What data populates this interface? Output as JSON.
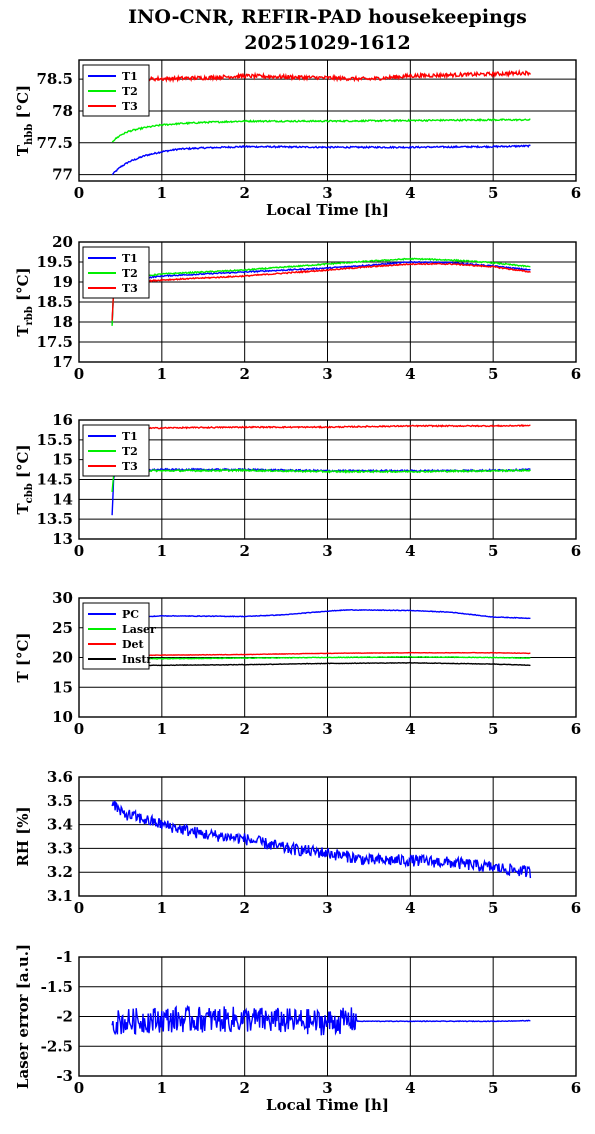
{
  "title": {
    "line1": "INO-CNR, REFIR-PAD housekeepings",
    "line2": "20251029-1612"
  },
  "colors": {
    "blue": "#0000ff",
    "green": "#00ee00",
    "red": "#ff0000",
    "black": "#000000"
  },
  "chart_data": [
    {
      "type": "line",
      "ylabel_main": "T",
      "ylabel_sub": "hbb",
      "ylabel_unit": " [°C]",
      "xlabel": "Local Time [h]",
      "xlim": [
        0,
        6
      ],
      "ylim": [
        76.9,
        78.8
      ],
      "xticks": [
        "0",
        "1",
        "2",
        "3",
        "4",
        "5",
        "6"
      ],
      "yticks": [
        {
          "v": 77,
          "t": "77"
        },
        {
          "v": 77.5,
          "t": "77.5"
        },
        {
          "v": 78,
          "t": "78"
        },
        {
          "v": 78.5,
          "t": "78.5"
        }
      ],
      "legend": {
        "position": "top-left",
        "entries": [
          "T1",
          "T2",
          "T3"
        ]
      },
      "series": [
        {
          "name": "T1",
          "color": "#0000ff",
          "noise": 0.012,
          "x": [
            0.4,
            0.5,
            0.6,
            0.8,
            1.0,
            1.2,
            1.5,
            2.0,
            3.0,
            4.0,
            5.0,
            5.45
          ],
          "y": [
            77.0,
            77.12,
            77.2,
            77.3,
            77.36,
            77.4,
            77.42,
            77.44,
            77.43,
            77.43,
            77.44,
            77.45
          ]
        },
        {
          "name": "T2",
          "color": "#00ee00",
          "noise": 0.012,
          "x": [
            0.4,
            0.5,
            0.6,
            0.8,
            1.0,
            1.2,
            1.5,
            2.0,
            3.0,
            4.0,
            5.0,
            5.45
          ],
          "y": [
            77.52,
            77.62,
            77.68,
            77.74,
            77.78,
            77.8,
            77.82,
            77.84,
            77.84,
            77.85,
            77.86,
            77.86
          ]
        },
        {
          "name": "T3",
          "color": "#ff0000",
          "noise": 0.03,
          "x": [
            0.4,
            0.8,
            1.5,
            2.0,
            3.0,
            3.5,
            4.0,
            5.0,
            5.45
          ],
          "y": [
            78.48,
            78.5,
            78.52,
            78.55,
            78.52,
            78.5,
            78.55,
            78.58,
            78.6
          ]
        }
      ]
    },
    {
      "type": "line",
      "ylabel_main": "T",
      "ylabel_sub": "rbb",
      "ylabel_unit": " [°C]",
      "xlabel": "",
      "xlim": [
        0,
        6
      ],
      "ylim": [
        17,
        20
      ],
      "xticks": [
        "0",
        "1",
        "2",
        "3",
        "4",
        "5",
        "6"
      ],
      "yticks": [
        {
          "v": 17,
          "t": "17"
        },
        {
          "v": 17.5,
          "t": "17.5"
        },
        {
          "v": 18,
          "t": "18"
        },
        {
          "v": 18.5,
          "t": "18.5"
        },
        {
          "v": 19,
          "t": "19"
        },
        {
          "v": 19.5,
          "t": "19.5"
        },
        {
          "v": 20,
          "t": "20"
        }
      ],
      "legend": {
        "position": "top-left",
        "entries": [
          "T1",
          "T2",
          "T3"
        ]
      },
      "series": [
        {
          "name": "T1",
          "color": "#0000ff",
          "noise": 0.015,
          "x": [
            0.4,
            0.42,
            0.5,
            0.8,
            1.0,
            2.0,
            3.0,
            3.5,
            4.0,
            4.5,
            5.0,
            5.45
          ],
          "y": [
            17.95,
            18.9,
            19.05,
            19.1,
            19.15,
            19.25,
            19.35,
            19.42,
            19.5,
            19.48,
            19.4,
            19.3
          ]
        },
        {
          "name": "T2",
          "color": "#00ee00",
          "noise": 0.015,
          "x": [
            0.4,
            0.42,
            0.5,
            0.8,
            1.0,
            2.0,
            3.0,
            3.5,
            4.0,
            4.5,
            5.0,
            5.45
          ],
          "y": [
            17.9,
            18.95,
            19.1,
            19.15,
            19.2,
            19.3,
            19.45,
            19.52,
            19.58,
            19.55,
            19.48,
            19.38
          ]
        },
        {
          "name": "T3",
          "color": "#ff0000",
          "noise": 0.015,
          "x": [
            0.4,
            0.42,
            0.5,
            0.8,
            1.0,
            2.0,
            3.0,
            3.5,
            4.0,
            4.5,
            5.0,
            5.45
          ],
          "y": [
            18.05,
            18.85,
            19.0,
            19.02,
            19.05,
            19.15,
            19.3,
            19.38,
            19.45,
            19.45,
            19.38,
            19.25
          ]
        }
      ]
    },
    {
      "type": "line",
      "ylabel_main": "T",
      "ylabel_sub": "cbb",
      "ylabel_unit": " [°C]",
      "xlabel": "",
      "xlim": [
        0,
        6
      ],
      "ylim": [
        13,
        16
      ],
      "xticks": [
        "0",
        "1",
        "2",
        "3",
        "4",
        "5",
        "6"
      ],
      "yticks": [
        {
          "v": 13,
          "t": "13"
        },
        {
          "v": 13.5,
          "t": "13.5"
        },
        {
          "v": 14,
          "t": "14"
        },
        {
          "v": 14.5,
          "t": "14.5"
        },
        {
          "v": 15,
          "t": "15"
        },
        {
          "v": 15.5,
          "t": "15.5"
        },
        {
          "v": 16,
          "t": "16"
        }
      ],
      "legend": {
        "position": "top-left",
        "entries": [
          "T1",
          "T2",
          "T3"
        ]
      },
      "series": [
        {
          "name": "T1",
          "color": "#0000ff",
          "noise": 0.02,
          "x": [
            0.4,
            0.42,
            0.5,
            1.0,
            2.0,
            3.0,
            4.0,
            5.0,
            5.45
          ],
          "y": [
            13.6,
            14.6,
            14.72,
            14.75,
            14.75,
            14.72,
            14.72,
            14.73,
            14.75
          ]
        },
        {
          "name": "T2",
          "color": "#00ee00",
          "noise": 0.02,
          "x": [
            0.4,
            0.42,
            0.5,
            1.0,
            2.0,
            3.0,
            4.0,
            5.0,
            5.45
          ],
          "y": [
            14.2,
            14.65,
            14.73,
            14.72,
            14.73,
            14.7,
            14.7,
            14.72,
            14.73
          ]
        },
        {
          "name": "T3",
          "color": "#ff0000",
          "noise": 0.015,
          "x": [
            0.4,
            0.5,
            1.0,
            2.0,
            3.0,
            4.0,
            5.0,
            5.45
          ],
          "y": [
            15.78,
            15.78,
            15.8,
            15.82,
            15.82,
            15.85,
            15.85,
            15.86
          ]
        }
      ]
    },
    {
      "type": "line",
      "ylabel_main": "T [°C]",
      "ylabel_sub": "",
      "ylabel_unit": "",
      "xlabel": "",
      "xlim": [
        0,
        6
      ],
      "ylim": [
        10,
        30
      ],
      "xticks": [
        "0",
        "1",
        "2",
        "3",
        "4",
        "5",
        "6"
      ],
      "yticks": [
        {
          "v": 10,
          "t": "10"
        },
        {
          "v": 15,
          "t": "15"
        },
        {
          "v": 20,
          "t": "20"
        },
        {
          "v": 25,
          "t": "25"
        },
        {
          "v": 30,
          "t": "30"
        }
      ],
      "legend": {
        "position": "top-left",
        "entries": [
          "PC",
          "Laser",
          "Det",
          "Instr"
        ]
      },
      "series": [
        {
          "name": "PC",
          "color": "#0000ff",
          "noise": 0.05,
          "x": [
            0.4,
            1.0,
            2.0,
            2.5,
            3.0,
            3.25,
            4.0,
            4.5,
            5.0,
            5.45
          ],
          "y": [
            26.5,
            27.0,
            26.9,
            27.2,
            27.8,
            28.0,
            27.9,
            27.6,
            26.8,
            26.6
          ]
        },
        {
          "name": "Laser",
          "color": "#00ee00",
          "noise": 0.05,
          "x": [
            0.4,
            1.0,
            2.0,
            3.0,
            4.0,
            5.0,
            5.45
          ],
          "y": [
            19.8,
            19.8,
            19.9,
            20.0,
            20.1,
            20.0,
            19.9
          ]
        },
        {
          "name": "Det",
          "color": "#ff0000",
          "noise": 0.03,
          "x": [
            0.4,
            1.0,
            2.0,
            3.0,
            4.0,
            5.0,
            5.45
          ],
          "y": [
            20.3,
            20.4,
            20.5,
            20.7,
            20.8,
            20.8,
            20.7
          ]
        },
        {
          "name": "Instr",
          "color": "#000000",
          "noise": 0.04,
          "x": [
            0.4,
            1.0,
            2.0,
            3.0,
            4.0,
            5.0,
            5.45
          ],
          "y": [
            18.6,
            18.7,
            18.8,
            19.0,
            19.1,
            18.9,
            18.7
          ]
        }
      ]
    },
    {
      "type": "line",
      "ylabel_main": "RH [%]",
      "ylabel_sub": "",
      "ylabel_unit": "",
      "xlabel": "",
      "xlim": [
        0,
        6
      ],
      "ylim": [
        3.1,
        3.6
      ],
      "xticks": [
        "0",
        "1",
        "2",
        "3",
        "4",
        "5",
        "6"
      ],
      "yticks": [
        {
          "v": 3.1,
          "t": "3.1"
        },
        {
          "v": 3.2,
          "t": "3.2"
        },
        {
          "v": 3.3,
          "t": "3.3"
        },
        {
          "v": 3.4,
          "t": "3.4"
        },
        {
          "v": 3.5,
          "t": "3.5"
        },
        {
          "v": 3.6,
          "t": "3.6"
        }
      ],
      "legend": null,
      "series": [
        {
          "name": "",
          "color": "#0000ff",
          "noise": 0.025,
          "x": [
            0.4,
            0.5,
            1.0,
            1.5,
            2.0,
            2.5,
            3.0,
            3.5,
            4.0,
            4.5,
            5.0,
            5.45
          ],
          "y": [
            3.5,
            3.45,
            3.4,
            3.36,
            3.34,
            3.3,
            3.28,
            3.25,
            3.25,
            3.24,
            3.22,
            3.2
          ]
        }
      ]
    },
    {
      "type": "line",
      "ylabel_main": "Laser error [a.u.]",
      "ylabel_sub": "",
      "ylabel_unit": "",
      "xlabel": "Local Time [h]",
      "xlim": [
        0,
        6
      ],
      "ylim": [
        -3,
        -1
      ],
      "xticks": [
        "0",
        "1",
        "2",
        "3",
        "4",
        "5",
        "6"
      ],
      "yticks": [
        {
          "v": -3,
          "t": "-3"
        },
        {
          "v": -2.5,
          "t": "-2.5"
        },
        {
          "v": -2,
          "t": "-2"
        },
        {
          "v": -1.5,
          "t": "-1.5"
        },
        {
          "v": -1,
          "t": "-1"
        }
      ],
      "legend": null,
      "series": [
        {
          "name": "",
          "color": "#0000ff",
          "noise": 0.22,
          "noise_until": 3.35,
          "noise_after": 0.005,
          "x": [
            0.4,
            1.0,
            2.0,
            3.0,
            3.35,
            3.36,
            4.0,
            5.0,
            5.45
          ],
          "y": [
            -2.1,
            -2.05,
            -2.05,
            -2.1,
            -2.05,
            -2.08,
            -2.08,
            -2.08,
            -2.07
          ]
        }
      ]
    }
  ]
}
